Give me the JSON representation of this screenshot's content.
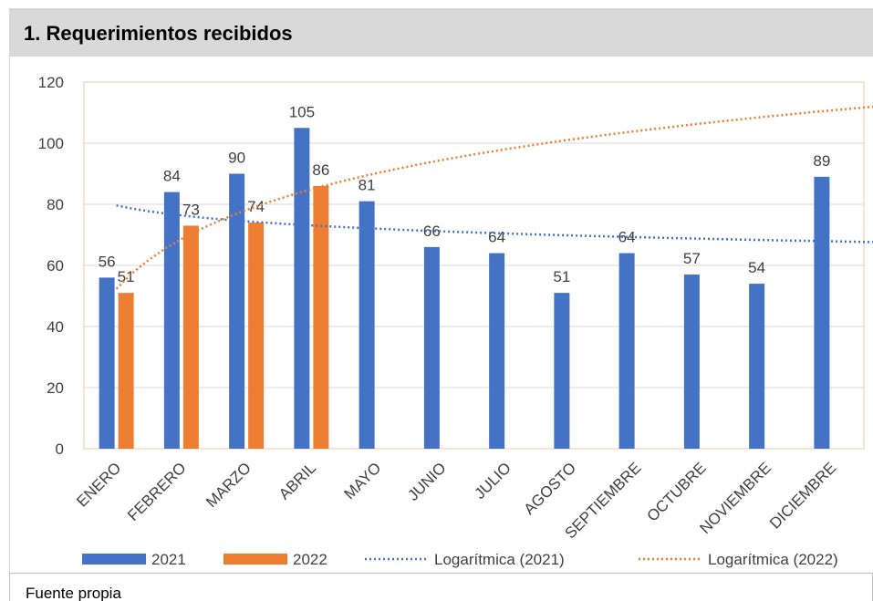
{
  "title": "1. Requerimientos recibidos",
  "source": "Fuente propia",
  "chart_data": {
    "type": "bar",
    "categories": [
      "ENERO",
      "FEBRERO",
      "MARZO",
      "ABRIL",
      "MAYO",
      "JUNIO",
      "JULIO",
      "AGOSTO",
      "SEPTIEMBRE",
      "OCTUBRE",
      "NOVIEMBRE",
      "DICIEMBRE"
    ],
    "series": [
      {
        "name": "2021",
        "color": "#4472c4",
        "values": [
          56,
          84,
          90,
          105,
          81,
          66,
          64,
          51,
          64,
          57,
          54,
          89
        ]
      },
      {
        "name": "2022",
        "color": "#ed7d31",
        "values": [
          51,
          73,
          74,
          86,
          null,
          null,
          null,
          null,
          null,
          null,
          null,
          null
        ]
      }
    ],
    "trendlines": [
      {
        "name": "Logarítmica (2021)",
        "series": 0,
        "kind": "log",
        "color": "#4472c4"
      },
      {
        "name": "Logarítmica (2022)",
        "series": 1,
        "kind": "log",
        "color": "#ed7d31"
      }
    ],
    "ylim": [
      0,
      120
    ],
    "yticks": [
      0,
      20,
      40,
      60,
      80,
      100,
      120
    ],
    "grid": true,
    "legend": "bottom"
  }
}
